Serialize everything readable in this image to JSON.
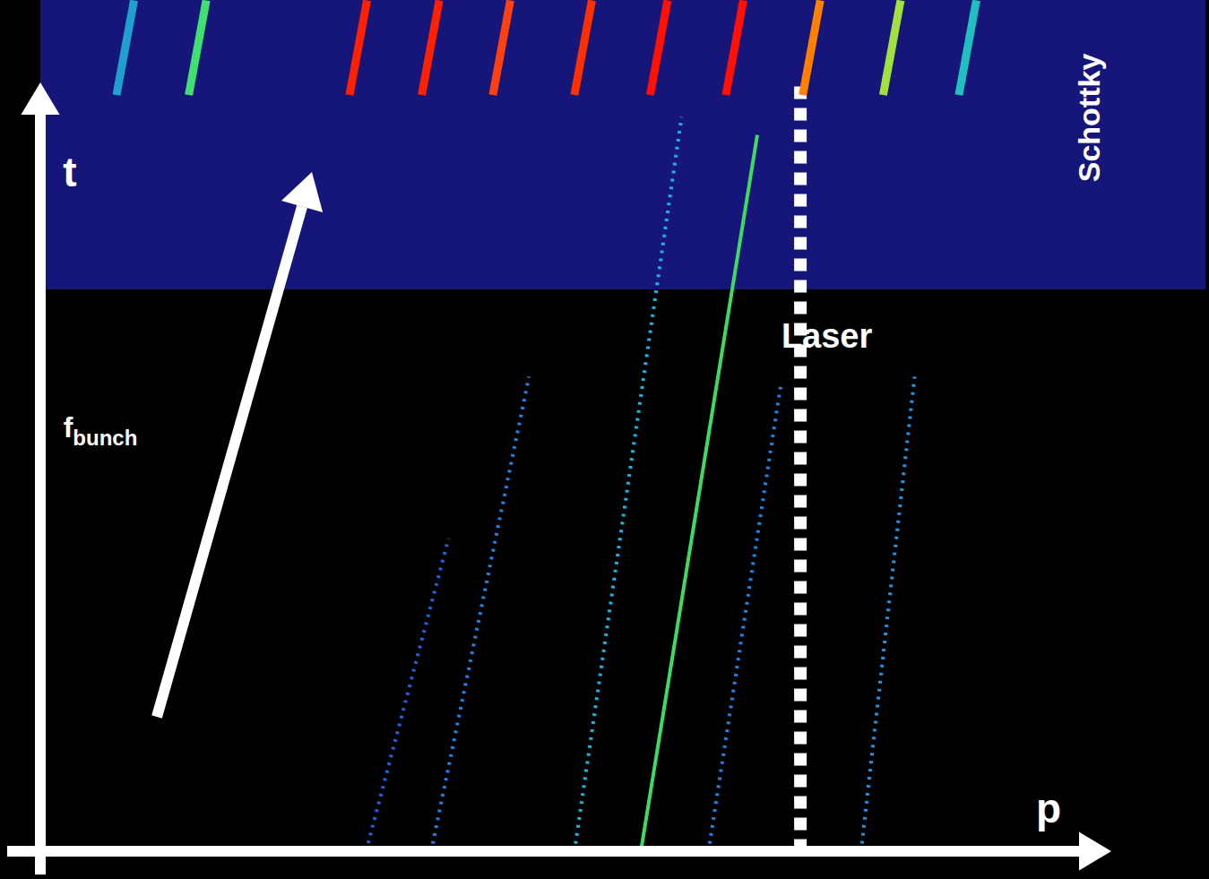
{
  "chart_data": {
    "type": "line",
    "xlabel": "p",
    "ylabel": "t",
    "xlim": [
      0,
      100
    ],
    "ylim": [
      0,
      100
    ],
    "tick_labels": false,
    "grid": false,
    "regions": [
      {
        "name": "Schottky",
        "y": [
          66,
          100
        ],
        "color": "#16167a"
      }
    ],
    "annotations": [
      {
        "text": "f",
        "subscript": "bunch"
      }
    ],
    "series": [
      {
        "name": "Laser",
        "color": "#ffffff",
        "line_style": "dotted",
        "x": [
          65.2,
          65.2
        ],
        "values": [
          0,
          90
        ]
      },
      {
        "color": "#3cdc60",
        "line_style": "solid",
        "x": [
          51.5,
          61.5
        ],
        "values": [
          0,
          84.2
        ]
      },
      {
        "color": "#20b0e0",
        "line_style": "dotted",
        "x": [
          45.8,
          55.0
        ],
        "values": [
          0,
          86.3
        ]
      },
      {
        "color": "#2080e0",
        "line_style": "dotted",
        "x": [
          33.5,
          41.9
        ],
        "values": [
          0,
          55.8
        ]
      },
      {
        "color": "#2060e0",
        "line_style": "dotted",
        "x": [
          28.1,
          35.0
        ],
        "values": [
          1,
          36.8
        ]
      },
      {
        "color": "#2080e0",
        "line_style": "dotted",
        "x": [
          57.3,
          63.5
        ],
        "values": [
          0,
          54.7
        ]
      },
      {
        "color": "#2090e0",
        "line_style": "dotted",
        "x": [
          70.4,
          75.0
        ],
        "values": [
          0,
          55.8
        ]
      },
      {
        "color": "#20a0d0",
        "line_style": "solid",
        "x": [
          6.5,
          8.0
        ],
        "values": [
          88.9,
          100
        ]
      },
      {
        "color": "#40e070",
        "line_style": "solid",
        "x": [
          12.7,
          14.2
        ],
        "values": [
          88.9,
          100
        ]
      },
      {
        "color": "#ff2000",
        "line_style": "solid",
        "x": [
          26.5,
          28.0
        ],
        "values": [
          88.9,
          100
        ]
      },
      {
        "color": "#ff2000",
        "line_style": "solid",
        "x": [
          32.7,
          34.2
        ],
        "values": [
          88.9,
          100
        ]
      },
      {
        "color": "#ff4010",
        "line_style": "solid",
        "x": [
          38.8,
          40.3
        ],
        "values": [
          88.9,
          100
        ]
      },
      {
        "color": "#ff3000",
        "line_style": "solid",
        "x": [
          45.8,
          47.3
        ],
        "values": [
          88.9,
          100
        ]
      },
      {
        "color": "#ff1000",
        "line_style": "solid",
        "x": [
          52.3,
          53.8
        ],
        "values": [
          88.9,
          100
        ]
      },
      {
        "color": "#ff1000",
        "line_style": "solid",
        "x": [
          58.8,
          60.3
        ],
        "values": [
          88.9,
          100
        ]
      },
      {
        "color": "#ff8000",
        "line_style": "solid",
        "x": [
          65.4,
          66.9
        ],
        "values": [
          88.9,
          100
        ]
      },
      {
        "color": "#a0e040",
        "line_style": "solid",
        "x": [
          72.3,
          73.8
        ],
        "values": [
          88.9,
          100
        ]
      },
      {
        "color": "#20c0c0",
        "line_style": "solid",
        "x": [
          78.8,
          80.3
        ],
        "values": [
          88.9,
          100
        ]
      }
    ]
  }
}
